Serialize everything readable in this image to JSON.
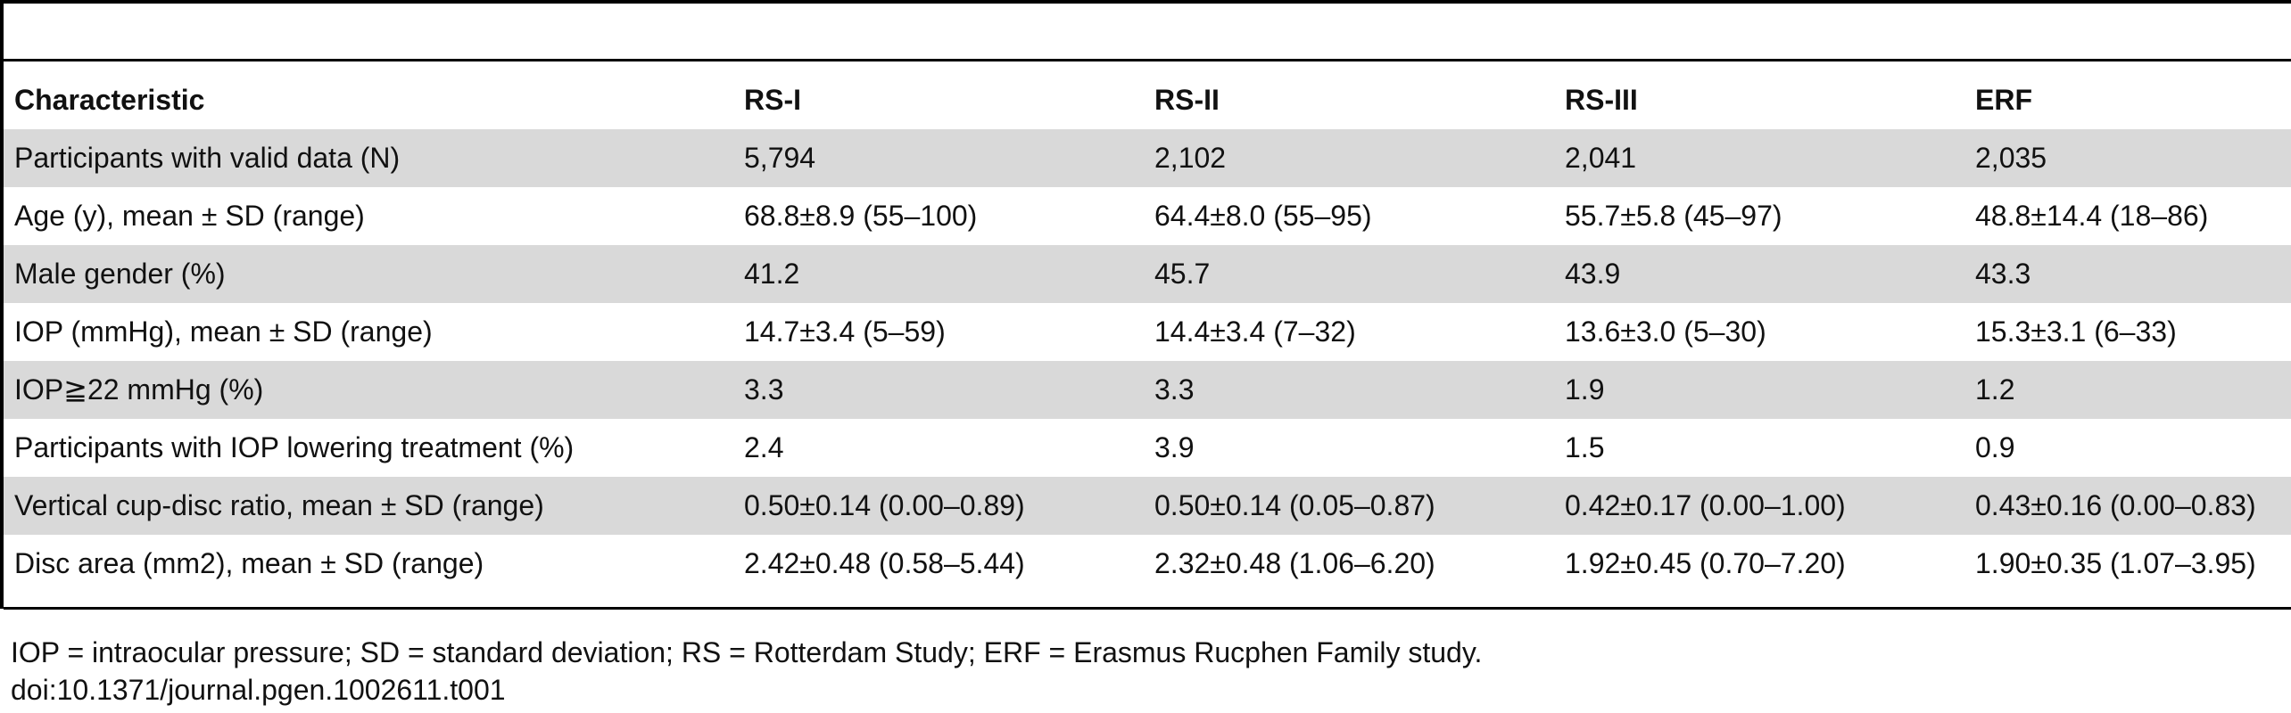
{
  "table": {
    "headers": [
      "Characteristic",
      "RS-I",
      "RS-II",
      "RS-III",
      "ERF"
    ],
    "rows": [
      [
        "Participants with valid data (N)",
        "5,794",
        "2,102",
        "2,041",
        "2,035"
      ],
      [
        "Age (y), mean ± SD (range)",
        "68.8±8.9 (55–100)",
        "64.4±8.0 (55–95)",
        "55.7±5.8 (45–97)",
        "48.8±14.4 (18–86)"
      ],
      [
        "Male gender (%)",
        "41.2",
        "45.7",
        "43.9",
        "43.3"
      ],
      [
        "IOP (mmHg), mean ± SD (range)",
        "14.7±3.4 (5–59)",
        "14.4±3.4 (7–32)",
        "13.6±3.0 (5–30)",
        "15.3±3.1 (6–33)"
      ],
      [
        "IOP≧22 mmHg (%)",
        "3.3",
        "3.3",
        "1.9",
        "1.2"
      ],
      [
        "Participants with IOP lowering treatment (%)",
        "2.4",
        "3.9",
        "1.5",
        "0.9"
      ],
      [
        "Vertical cup-disc ratio, mean ± SD (range)",
        "0.50±0.14 (0.00–0.89)",
        "0.50±0.14 (0.05–0.87)",
        "0.42±0.17 (0.00–1.00)",
        "0.43±0.16 (0.00–0.83)"
      ],
      [
        "Disc area (mm2), mean ± SD (range)",
        "2.42±0.48 (0.58–5.44)",
        "2.32±0.48 (1.06–6.20)",
        "1.92±0.45 (0.70–7.20)",
        "1.90±0.35 (1.07–3.95)"
      ]
    ]
  },
  "footnote": {
    "abbreviations": "IOP = intraocular pressure; SD = standard deviation; RS = Rotterdam Study; ERF = Erasmus Rucphen Family study.",
    "doi": "doi:10.1371/journal.pgen.1002611.t001"
  },
  "colors": {
    "stripe": "#d9d9d9",
    "rule": "#000000",
    "background": "#ffffff"
  }
}
